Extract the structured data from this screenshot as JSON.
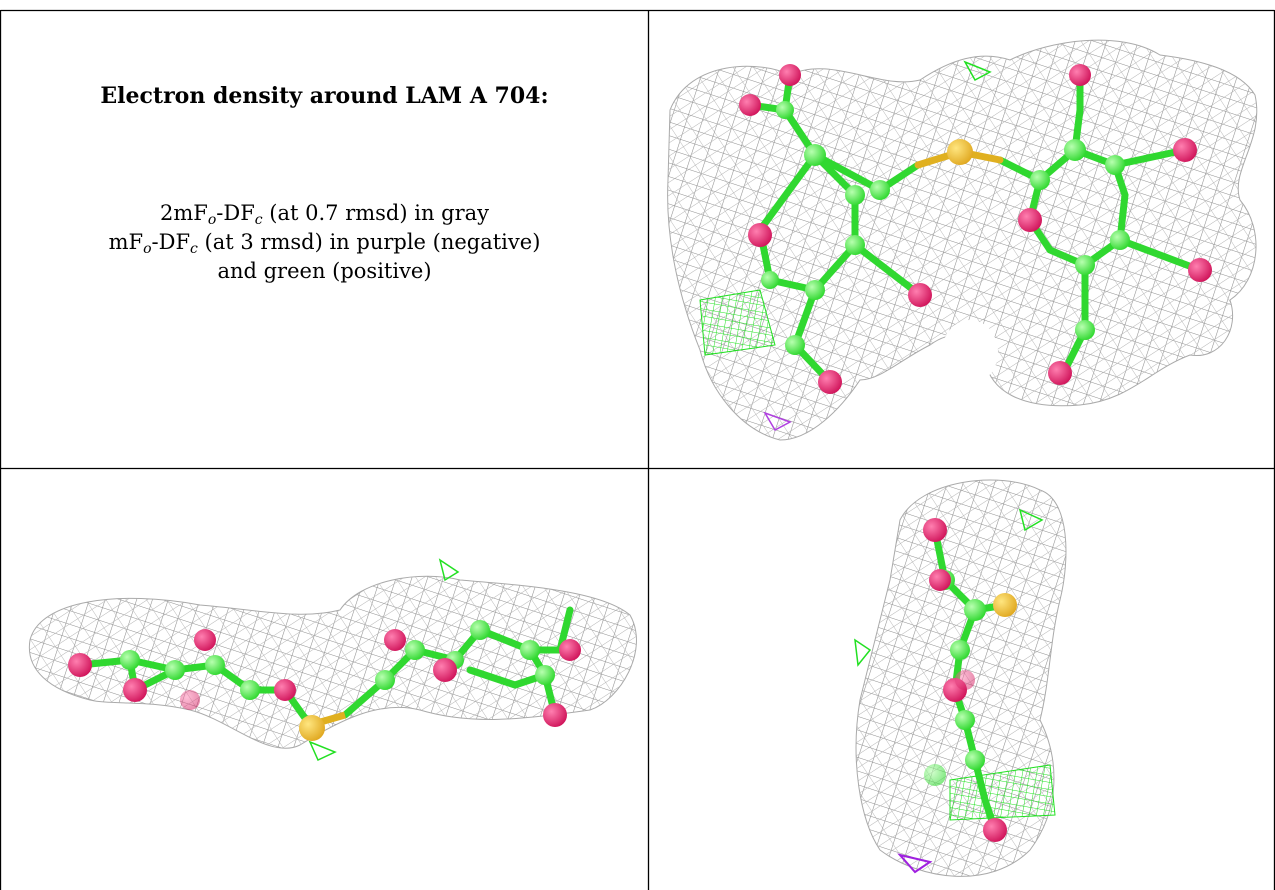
{
  "caption": {
    "title": "Electron density around LAM A 704:",
    "lines": [
      [
        "2mF",
        "o",
        "-DF",
        "c",
        " (at 0.7 rmsd) in gray"
      ],
      [
        "mF",
        "o",
        "-DF",
        "c",
        " (at 3 rmsd) in purple (negative)"
      ],
      [
        "and green (positive)"
      ]
    ]
  }
}
